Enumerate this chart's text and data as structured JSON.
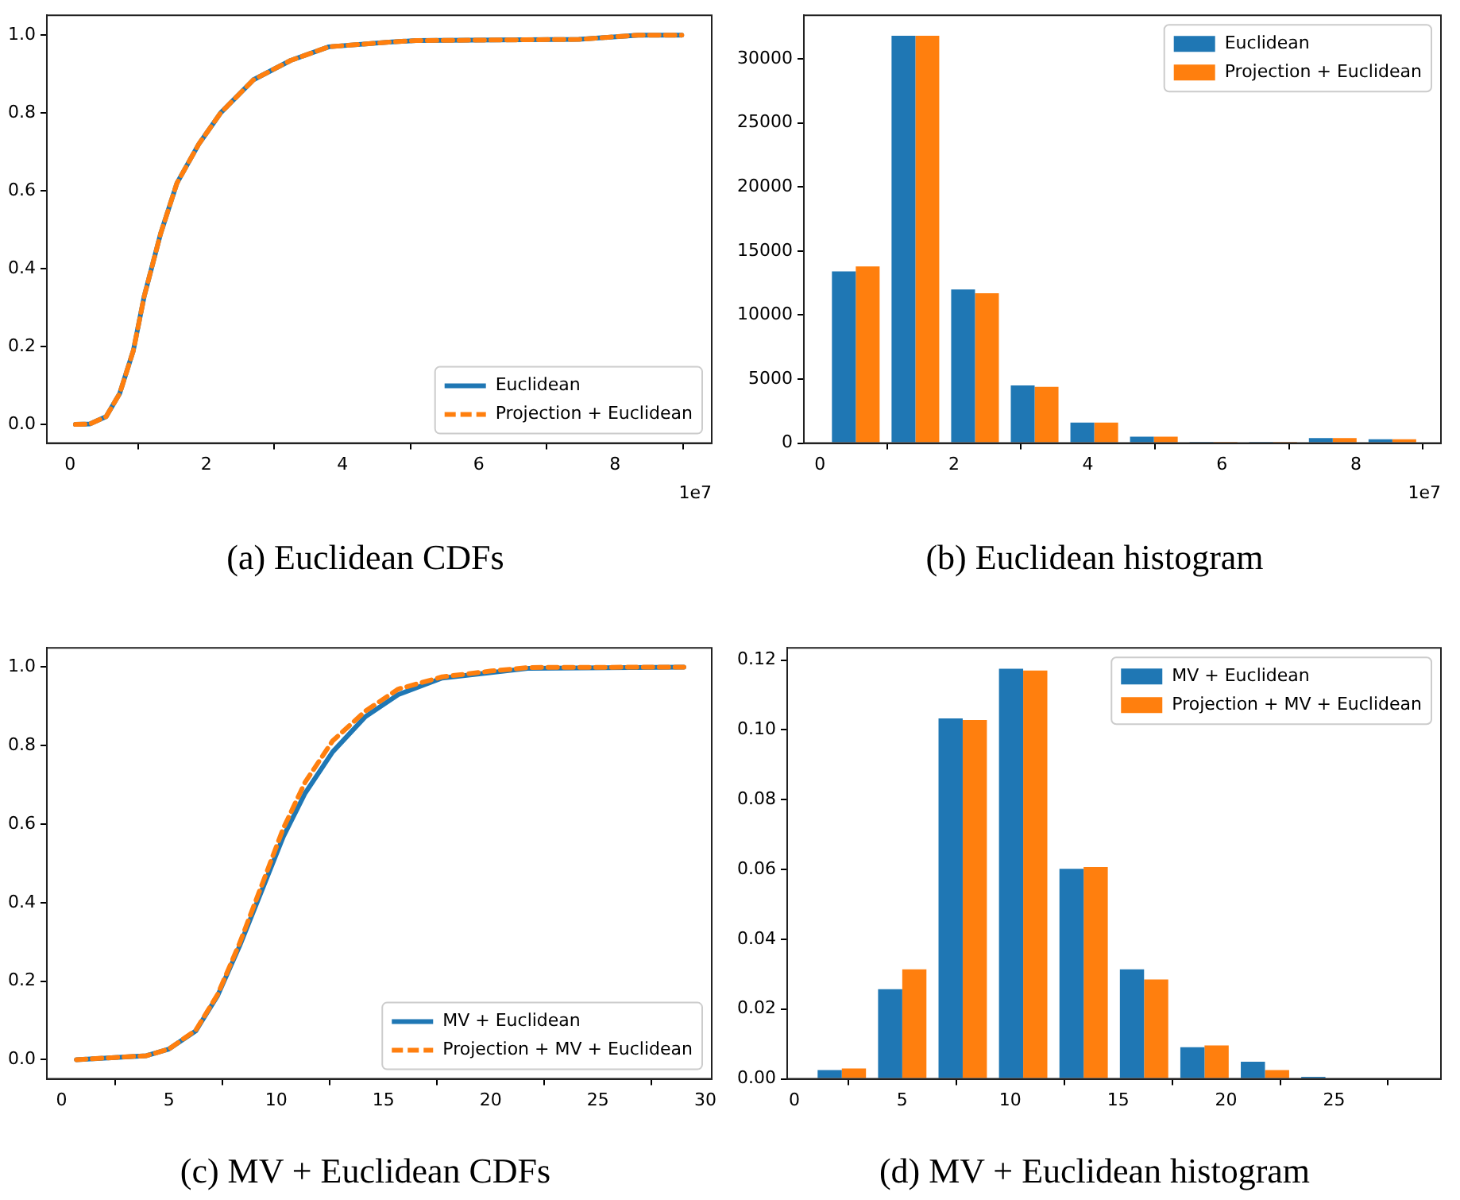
{
  "chart_data": [
    {
      "type": "line",
      "title": "(a) Euclidean CDFs",
      "x": [
        0.08,
        0.29,
        0.53,
        0.73,
        0.93,
        1.09,
        1.33,
        1.57,
        1.89,
        2.21,
        2.69,
        3.24,
        3.8,
        4.68,
        5.08,
        7.47,
        8.34,
        8.98
      ],
      "series": [
        {
          "name": "Euclidean",
          "color": "#1f77b4",
          "values": [
            0,
            0.001,
            0.02,
            0.08,
            0.19,
            0.33,
            0.49,
            0.62,
            0.72,
            0.8,
            0.885,
            0.935,
            0.97,
            0.982,
            0.986,
            0.989,
            1.0,
            1.0
          ]
        },
        {
          "name": "Projection + Euclidean",
          "color": "#ff7f0e",
          "line_style": "dashed",
          "values": [
            0,
            0.001,
            0.02,
            0.08,
            0.19,
            0.33,
            0.49,
            0.62,
            0.72,
            0.8,
            0.885,
            0.935,
            0.97,
            0.982,
            0.986,
            0.989,
            1.0,
            1.0
          ]
        }
      ],
      "xlim": [
        -0.34,
        9.42
      ],
      "xticks": [
        0,
        2,
        4,
        6,
        8
      ],
      "ylim": [
        -0.048,
        1.051
      ],
      "yticks": [
        {
          "value": 0,
          "label": "0.0"
        },
        0.2,
        0.4,
        0.6,
        0.8,
        {
          "value": 1,
          "label": "1.0"
        }
      ],
      "annotations": [
        "1e7"
      ],
      "legend": "bottom right",
      "marker": "none",
      "grid": false
    },
    {
      "type": "histogram",
      "title": "(b) Euclidean histogram",
      "bins": [
        0.09,
        0.98,
        1.87,
        2.76,
        3.65,
        4.54,
        5.43,
        6.32,
        7.21,
        8.1,
        8.99
      ],
      "series": [
        {
          "name": "Euclidean",
          "color": "#1f77b4",
          "values": [
            13400,
            31800,
            12000,
            4500,
            1600,
            500,
            100,
            100,
            400,
            300
          ]
        },
        {
          "name": "Projection + Euclidean",
          "color": "#ff7f0e",
          "values": [
            13800,
            31800,
            11700,
            4400,
            1600,
            500,
            100,
            100,
            400,
            300
          ]
        }
      ],
      "xlim": [
        -0.24,
        9.27
      ],
      "xticks": [
        0,
        2,
        4,
        6,
        8
      ],
      "ylim": [
        0,
        33400
      ],
      "yticks": [
        0,
        5000,
        10000,
        15000,
        20000,
        25000,
        30000
      ],
      "annotations": [
        "1e7"
      ],
      "legend": "top right",
      "grid": false
    },
    {
      "type": "line",
      "title": "(c) MV + Euclidean CDFs",
      "x": [
        0.69,
        3.95,
        5.0,
        6.25,
        7.27,
        8.29,
        9.31,
        10.33,
        11.35,
        12.63,
        14.16,
        15.69,
        17.73,
        20.03,
        21.8,
        29.0
      ],
      "series": [
        {
          "name": "MV + Euclidean",
          "color": "#1f77b4",
          "values": [
            0,
            0.01,
            0.027,
            0.073,
            0.163,
            0.289,
            0.428,
            0.568,
            0.679,
            0.784,
            0.874,
            0.93,
            0.972,
            0.986,
            0.997,
            1.0
          ]
        },
        {
          "name": "Projection + MV + Euclidean",
          "color": "#ff7f0e",
          "line_style": "dashed",
          "values": [
            0,
            0.01,
            0.027,
            0.075,
            0.166,
            0.296,
            0.442,
            0.589,
            0.707,
            0.812,
            0.888,
            0.944,
            0.975,
            0.99,
            0.999,
            1.0
          ]
        }
      ],
      "xlim": [
        -0.69,
        30.3
      ],
      "xticks": [
        0,
        5,
        10,
        15,
        20,
        25,
        30
      ],
      "ylim": [
        -0.049,
        1.049
      ],
      "yticks": [
        {
          "value": 0,
          "label": "0.0"
        },
        0.2,
        0.4,
        0.6,
        0.8,
        {
          "value": 1,
          "label": "1.0"
        }
      ],
      "legend": "bottom right",
      "marker": "none",
      "grid": false
    },
    {
      "type": "histogram",
      "title": "(d) MV + Euclidean histogram",
      "bins": [
        0.8,
        3.6,
        6.4,
        9.2,
        12,
        14.8,
        17.6,
        20.4,
        23.2,
        26,
        28.8
      ],
      "series": [
        {
          "name": "MV + Euclidean",
          "color": "#1f77b4",
          "values": [
            0.0025,
            0.0257,
            0.1033,
            0.1175,
            0.0602,
            0.0314,
            0.0091,
            0.0049,
            0.0006,
            null
          ]
        },
        {
          "name": "Projection + MV + Euclidean",
          "color": "#ff7f0e",
          "values": [
            0.003,
            0.0314,
            0.1028,
            0.117,
            0.0607,
            0.0285,
            0.0096,
            0.0025,
            null,
            null
          ]
        }
      ],
      "xlim": [
        -0.33,
        29.95
      ],
      "xticks": [
        0,
        5,
        10,
        15,
        20,
        25
      ],
      "ylim": [
        0,
        0.1235
      ],
      "yticks": [
        {
          "value": 0,
          "label": "0.00"
        },
        0.02,
        0.04,
        0.06,
        0.08,
        {
          "value": 0.1,
          "label": "0.10"
        },
        0.12
      ],
      "legend": "top right",
      "grid": false
    }
  ]
}
